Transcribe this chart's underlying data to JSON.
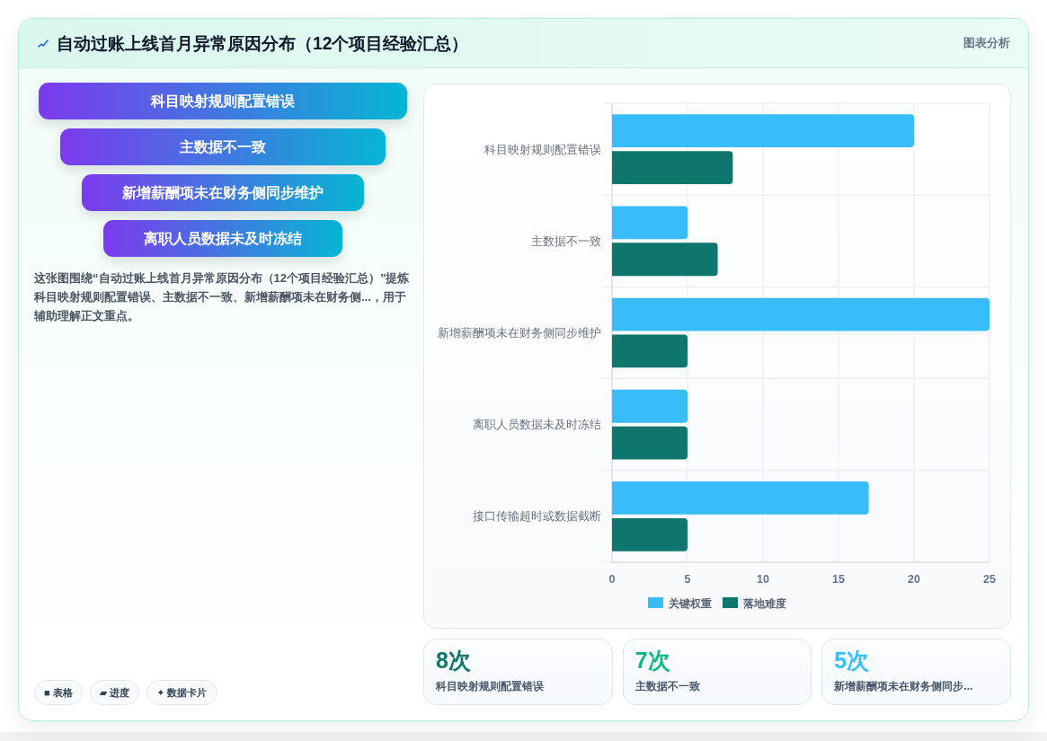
{
  "chart_data": [
    {
      "type": "other",
      "title": "自动过账上线首月异常原因分布（12个项目经验汇总）",
      "subtitle": "图表分析",
      "categories": [
        "科目映射规则配置错误",
        "主数据不一致",
        "新增薪酬项未在财务侧同步维护",
        "离职人员数据未及时冻结"
      ],
      "annotations": [
        "这张图围绕“自动过账上线首月异常原因分布（12个项目经验汇总）”提炼科目映射规则配置错误、主数据不一致、新增薪酬项未在财务侧...，用于辅助理解正文重点。",
        "■ 表格",
        "▰ 进度",
        "✦ 数据卡片"
      ]
    },
    {
      "type": "bar",
      "orientation": "horizontal",
      "categories": [
        "科目映射规则配置错误",
        "主数据不一致",
        "新增薪酬项未在财务侧同步维护",
        "离职人员数据未及时冻结",
        "接口传输超时或数据截断"
      ],
      "series": [
        {
          "name": "关键权重",
          "color": "#38bdf8",
          "values": [
            20,
            5,
            25,
            5,
            17
          ]
        },
        {
          "name": "落地难度",
          "color": "#0f766e",
          "values": [
            8,
            7,
            5,
            5,
            5
          ]
        }
      ],
      "xlim": [
        0,
        25
      ],
      "xticks": [
        0,
        5,
        10,
        15,
        20,
        25
      ],
      "grid": true,
      "legend": "bottom"
    },
    {
      "type": "other",
      "categories": [
        "科目映射规则配置错误",
        "主数据不一致",
        "新增薪酬项未在财务侧同步..."
      ],
      "values": [
        8,
        7,
        5
      ],
      "value_labels": [
        "8次",
        "7次",
        "5次"
      ]
    }
  ]
}
